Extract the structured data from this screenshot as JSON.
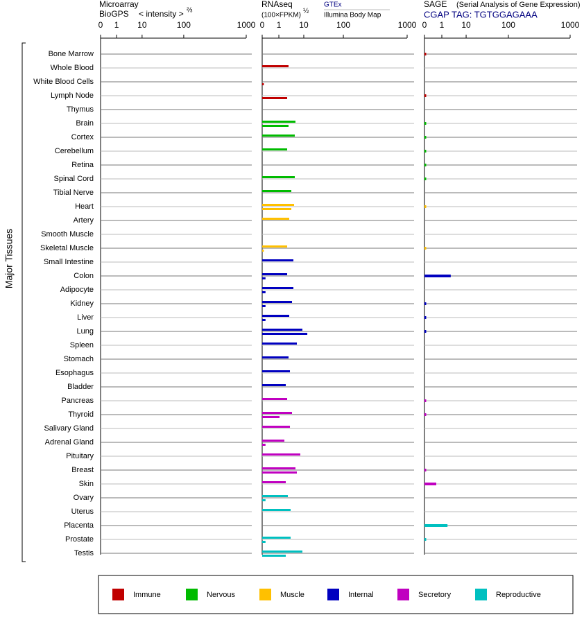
{
  "chart_data": [
    {
      "type": "bar",
      "title": "Microarray",
      "subtitle": "BioGPS",
      "axis_label": "< intensity >",
      "axis_exponent": "⅔",
      "y_label": "Major Tissues",
      "categories": [
        "Bone Marrow",
        "Whole Blood",
        "White Blood Cells",
        "Lymph Node",
        "Thymus",
        "Brain",
        "Cortex",
        "Cerebellum",
        "Retina",
        "Spinal Cord",
        "Tibial Nerve",
        "Heart",
        "Artery",
        "Smooth Muscle",
        "Skeletal Muscle",
        "Small Intestine",
        "Colon",
        "Adipocyte",
        "Kidney",
        "Liver",
        "Lung",
        "Spleen",
        "Stomach",
        "Esophagus",
        "Bladder",
        "Pancreas",
        "Thyroid",
        "Salivary Gland",
        "Adrenal Gland",
        "Pituitary",
        "Breast",
        "Skin",
        "Ovary",
        "Uterus",
        "Placenta",
        "Prostate",
        "Testis"
      ],
      "bar_colors": [
        "#c00000",
        "#c00000",
        "#c00000",
        "#c00000",
        "#c00000",
        "#00bb00",
        "#00bb00",
        "#00bb00",
        "#00bb00",
        "#00bb00",
        "#00bb00",
        "#ffc000",
        "#ffc000",
        "#ffc000",
        "#ffc000",
        "#0000c0",
        "#0000c0",
        "#0000c0",
        "#0000c0",
        "#0000c0",
        "#0000c0",
        "#0000c0",
        "#0000c0",
        "#0000c0",
        "#0000c0",
        "#c000c0",
        "#c000c0",
        "#c000c0",
        "#c000c0",
        "#c000c0",
        "#c000c0",
        "#c000c0",
        "#00c0c0",
        "#00c0c0",
        "#00c0c0",
        "#00c0c0",
        "#00c0c0"
      ],
      "legend": [
        {
          "name": "Immune",
          "color": "#c00000"
        },
        {
          "name": "Nervous",
          "color": "#00bb00"
        },
        {
          "name": "Muscle",
          "color": "#ffc000"
        },
        {
          "name": "Internal",
          "color": "#0000c0"
        },
        {
          "name": "Secretory",
          "color": "#c000c0"
        },
        {
          "name": "Reproductive",
          "color": "#00c0c0"
        }
      ],
      "xlim": [
        0,
        1000
      ],
      "xticks": [
        0,
        1,
        10,
        100,
        1000
      ]
    },
    {
      "type": "bar",
      "title": "RNAseq",
      "axis_label": "(100×FPKM)",
      "axis_exponent": "½",
      "xlim": [
        0,
        1000
      ],
      "xticks": [
        0,
        1,
        10,
        100,
        1000
      ],
      "series": [
        {
          "name": "GTEx",
          "color": "#000080",
          "values": [
            null,
            4.5,
            null,
            null,
            null,
            7,
            6.75,
            4,
            null,
            6.75,
            5.5,
            6.5,
            4.75,
            null,
            4,
            6.25,
            4,
            6.25,
            5.75,
            4.75,
            9.5,
            7.5,
            4.5,
            5,
            3.5,
            4,
            5.75,
            5,
            3,
            8.75,
            7,
            3.5,
            4.25,
            5.25,
            null,
            5.25,
            9.5
          ]
        },
        {
          "name": "Illumina Body Map",
          "color": "#000000",
          "values": [
            null,
            null,
            0.1,
            4,
            null,
            4.5,
            null,
            null,
            null,
            null,
            null,
            5.5,
            null,
            null,
            0.1,
            null,
            0.2,
            0.2,
            0.2,
            0.2,
            18,
            null,
            null,
            null,
            null,
            null,
            1.25,
            null,
            0.2,
            null,
            7.5,
            null,
            0.2,
            null,
            null,
            0.2,
            3.5
          ]
        }
      ]
    },
    {
      "type": "bar",
      "title": "SAGE",
      "subtitle": "(Serial Analysis of Gene Expression)",
      "tag": "CGAP TAG: TGTGGAGAAA",
      "xlim": [
        0,
        1000
      ],
      "xticks": [
        0,
        1,
        10,
        100,
        1000
      ],
      "values": [
        0.1,
        null,
        null,
        0.1,
        null,
        0.1,
        0.1,
        0.1,
        0.1,
        0.1,
        null,
        0.1,
        null,
        null,
        0.1,
        null,
        4.3,
        null,
        0.1,
        0.1,
        0.1,
        null,
        null,
        null,
        null,
        0.1,
        0.1,
        null,
        null,
        null,
        0.1,
        0.68,
        null,
        null,
        3.1,
        0.1,
        null
      ]
    }
  ]
}
